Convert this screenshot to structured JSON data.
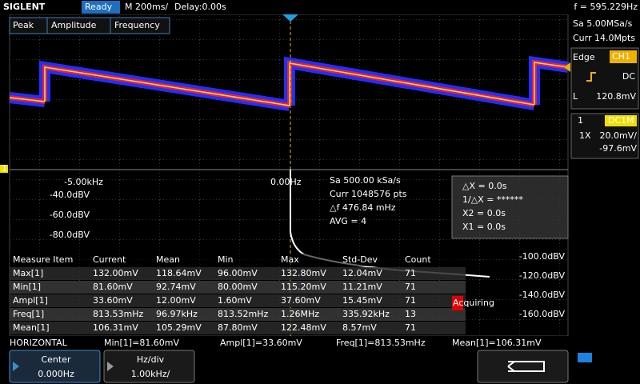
{
  "header": {
    "brand": "SIGLENT",
    "status": "Ready",
    "timebase": "M 200ms/",
    "delay": "Delay:0.00s",
    "frequency": "f = 595.229Hz"
  },
  "tabs": [
    "Peak",
    "Amplitude",
    "Frequency"
  ],
  "acquisition": {
    "sample_rate": "Sa 5.00MSa/s",
    "memory": "Curr 14.0Mpts"
  },
  "trigger": {
    "type": "Edge",
    "source": "CH1",
    "coupling": "DC",
    "level_label": "L",
    "level": "120.8mV"
  },
  "channel": {
    "number": "1",
    "coupling": "DC1M",
    "probe": "1X",
    "scale": "20.0mV/",
    "offset": "-97.6mV"
  },
  "channel_marker": "1",
  "fft": {
    "x_labels": [
      "-5.00kHz",
      "0.00Hz"
    ],
    "y_labels_left": [
      "-40.0dBV",
      "-60.0dBV",
      "-80.0dBV"
    ],
    "y_labels_right": [
      "-100.0dBV",
      "-120.0dBV",
      "-140.0dBV",
      "-160.0dBV"
    ],
    "info": [
      "Sa 500.00 kSa/s",
      "Curr 1048576 pts",
      "△f 476.84 mHz",
      "AVG = 4"
    ]
  },
  "cursors": [
    "△X = 0.0s",
    "1/△X = ******",
    "X2 = 0.0s",
    "X1 = 0.0s"
  ],
  "measure": {
    "header": [
      "Measure Item",
      "Current",
      "Mean",
      "Min",
      "Max",
      "Std-Dev",
      "Count"
    ],
    "rows": [
      [
        "Max[1]",
        "132.00mV",
        "118.64mV",
        "96.00mV",
        "132.80mV",
        "12.04mV",
        "71"
      ],
      [
        "Min[1]",
        "81.60mV",
        "92.74mV",
        "80.00mV",
        "115.20mV",
        "11.21mV",
        "71"
      ],
      [
        "Ampl[1]",
        "33.60mV",
        "12.00mV",
        "1.60mV",
        "37.60mV",
        "15.45mV",
        "71"
      ],
      [
        "Freq[1]",
        "813.53mHz",
        "96.97kHz",
        "813.52mHz",
        "1.26MHz",
        "335.92kHz",
        "13"
      ],
      [
        "Mean[1]",
        "106.31mV",
        "105.29mV",
        "87.80mV",
        "122.48mV",
        "8.57mV",
        "71"
      ]
    ]
  },
  "status_tag": "Acquiring",
  "horizontal": {
    "title": "HORIZONTAL",
    "stats": [
      "Min[1]=81.60mV",
      "Ampl[1]=33.60mV",
      "Freq[1]=813.53mHz",
      "Mean[1]=106.31mV"
    ]
  },
  "controls": [
    {
      "label": "Center",
      "value": "0.000Hz"
    },
    {
      "label": "Hz/div",
      "value": "1.00kHz/"
    }
  ]
}
